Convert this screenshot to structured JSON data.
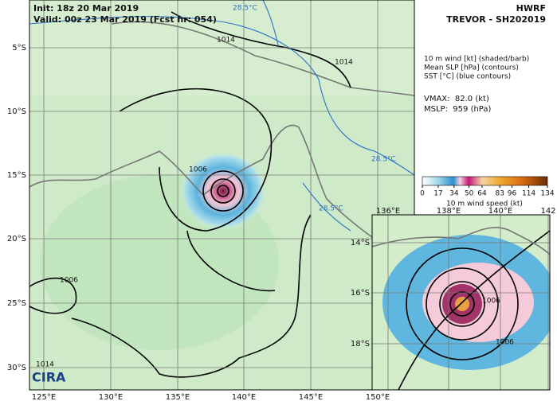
{
  "header": {
    "init": "Init: 18z 20 Mar 2019",
    "valid": "Valid: 00z 23 Mar 2019 (Fcst hr: 054)",
    "model": "HWRF",
    "storm": "TREVOR - SH202019",
    "logo": "CIRA"
  },
  "legend": {
    "lines": [
      "10 m wind [kt] (shaded/barb)",
      "Mean SLP [hPa] (contours)",
      "SST [°C] (blue contours)"
    ],
    "vmax": "VMAX:  82.0 (kt)",
    "mslp": "MSLP:  959 (hPa)"
  },
  "colorbar": {
    "ticks": [
      0,
      17,
      34,
      50,
      64,
      83,
      96,
      114,
      134
    ],
    "label": "10 m wind speed (kt)"
  },
  "map": {
    "lat_labels": [
      "5°S",
      "10°S",
      "15°S",
      "20°S",
      "25°S",
      "30°S"
    ],
    "lon_labels": [
      "125°E",
      "130°E",
      "135°E",
      "140°E",
      "145°E",
      "150°E"
    ],
    "contour_labels": [
      "1014",
      "1014",
      "1006",
      "1006",
      "1014"
    ],
    "sst_labels": [
      "28.5°C",
      "28.5°C",
      "28.5°C"
    ]
  },
  "inset": {
    "lon_labels": [
      "136°E",
      "138°E",
      "140°E",
      "142"
    ],
    "lat_labels": [
      "14°S",
      "16°S",
      "18°S"
    ],
    "contour_labels": [
      "1006",
      "1006"
    ]
  }
}
